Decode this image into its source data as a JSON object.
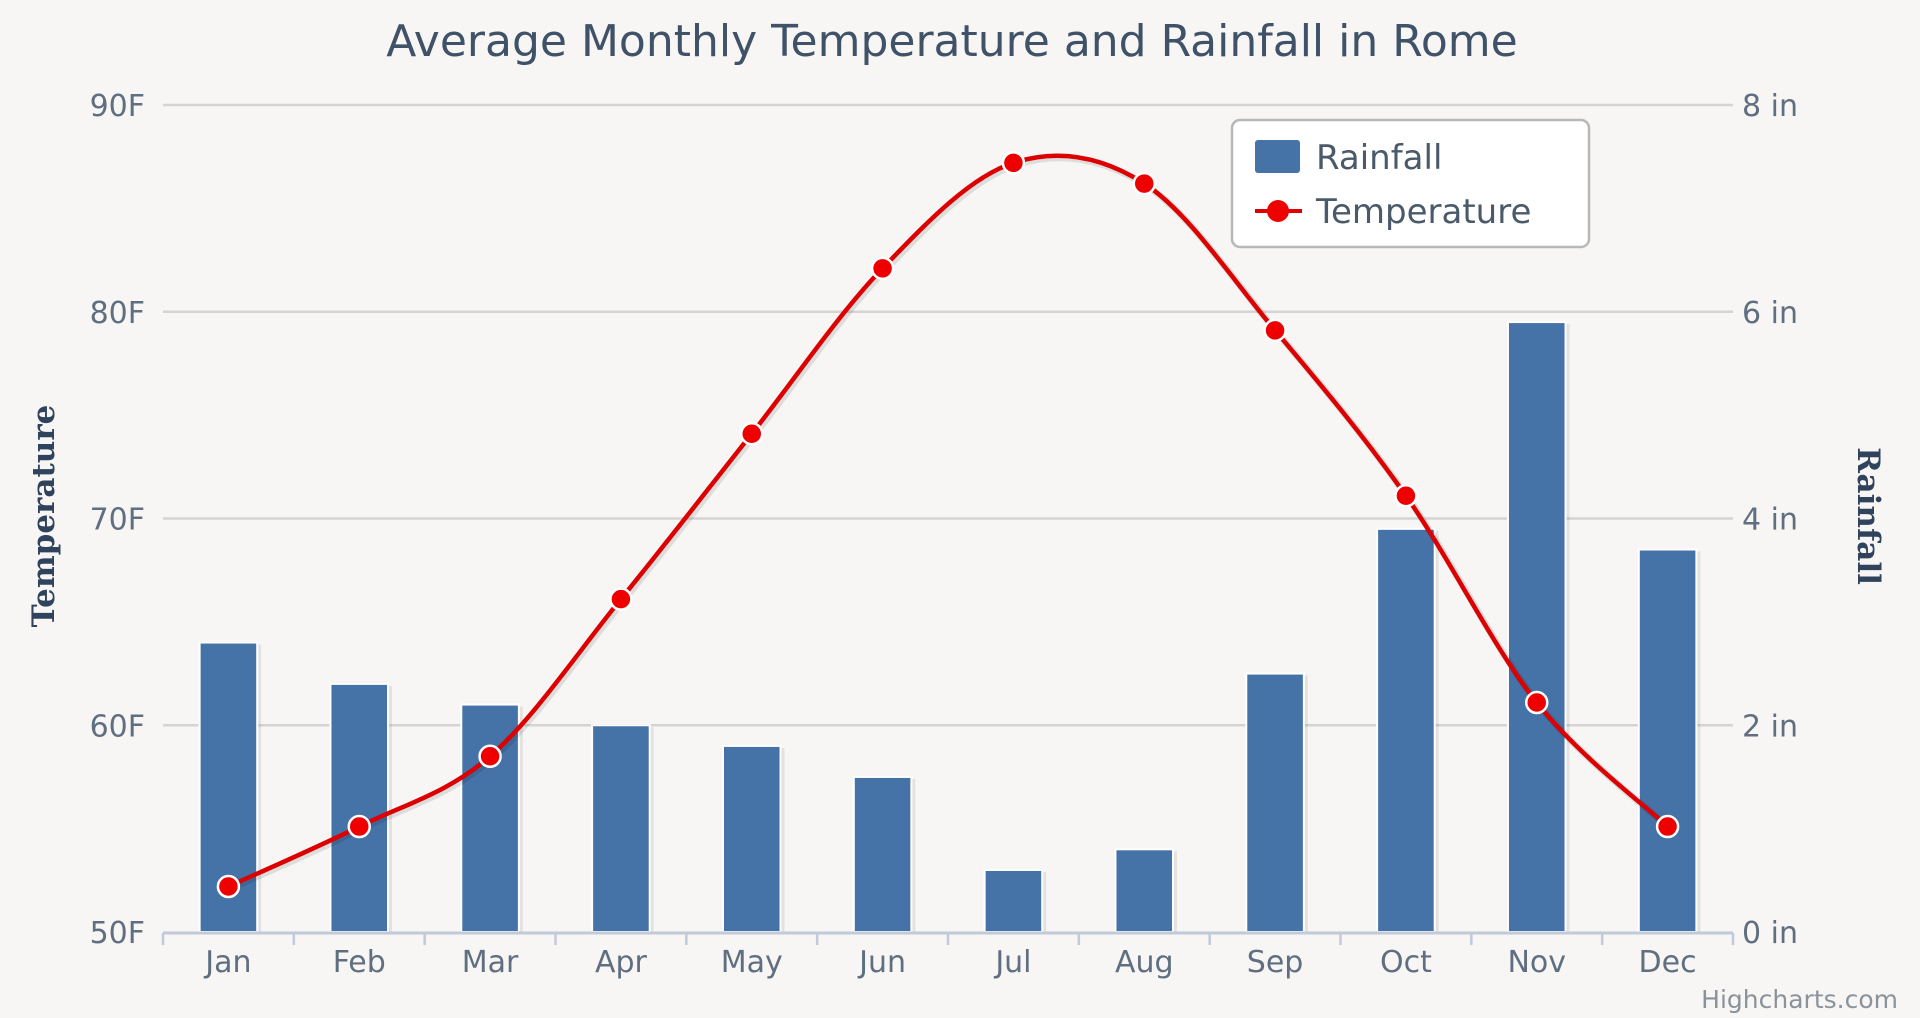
{
  "chart_data": {
    "type": "bar+line",
    "title": "Average Monthly Temperature and Rainfall in Rome",
    "categories": [
      "Jan",
      "Feb",
      "Mar",
      "Apr",
      "May",
      "Jun",
      "Jul",
      "Aug",
      "Sep",
      "Oct",
      "Nov",
      "Dec"
    ],
    "series": [
      {
        "name": "Rainfall",
        "type": "bar",
        "axis": "right",
        "unit": "in",
        "color": "#4572a7",
        "values": [
          2.8,
          2.4,
          2.2,
          2.0,
          1.8,
          1.5,
          0.6,
          0.8,
          2.5,
          3.9,
          5.9,
          3.7
        ]
      },
      {
        "name": "Temperature",
        "type": "line",
        "axis": "left",
        "unit": "F",
        "color": "#dd0000",
        "values": [
          52.2,
          55.1,
          58.5,
          66.1,
          74.1,
          82.1,
          87.2,
          86.2,
          79.1,
          71.1,
          61.1,
          55.1
        ]
      }
    ],
    "y_left": {
      "label": "Temperature",
      "range": [
        50,
        90
      ],
      "ticks": [
        50,
        60,
        70,
        80,
        90
      ],
      "tick_labels": [
        "50F",
        "60F",
        "70F",
        "80F",
        "90F"
      ]
    },
    "y_right": {
      "label": "Rainfall",
      "range": [
        0,
        8
      ],
      "ticks": [
        0,
        2,
        4,
        6,
        8
      ],
      "tick_labels": [
        "0 in",
        "2 in",
        "4 in",
        "6 in",
        "8 in"
      ]
    },
    "grid": true,
    "legend_position": "top-right",
    "credit": "Highcharts.com"
  }
}
